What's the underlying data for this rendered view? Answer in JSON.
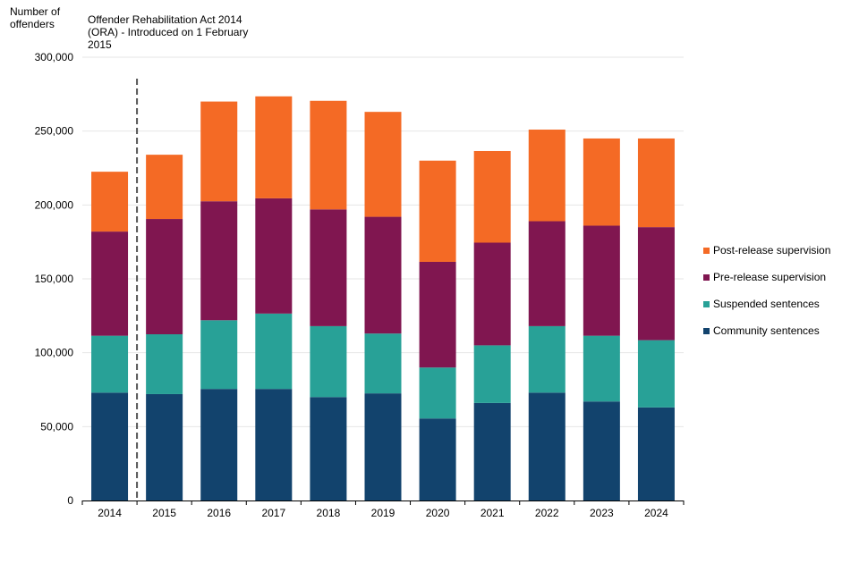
{
  "chart_data": {
    "type": "bar",
    "stacked": true,
    "ylabel": "Number of offenders",
    "xlabel": "",
    "ylim": [
      0,
      300000
    ],
    "yticks": [
      0,
      50000,
      100000,
      150000,
      200000,
      250000,
      300000
    ],
    "ytick_labels": [
      "0",
      "50,000",
      "100,000",
      "150,000",
      "200,000",
      "250,000",
      "300,000"
    ],
    "grid": true,
    "legend_position": "right",
    "categories": [
      "2014",
      "2015",
      "2016",
      "2017",
      "2018",
      "2019",
      "2020",
      "2021",
      "2022",
      "2023",
      "2024"
    ],
    "series": [
      {
        "name": "Community sentences",
        "color": "#12436d",
        "values": [
          73000,
          72000,
          75500,
          75500,
          70000,
          72500,
          55500,
          66000,
          73000,
          67000,
          63000
        ]
      },
      {
        "name": "Suspended sentences",
        "color": "#28a197",
        "values": [
          38500,
          40500,
          46500,
          51000,
          48000,
          40500,
          34500,
          39000,
          45000,
          44500,
          45500
        ]
      },
      {
        "name": "Pre-release supervision",
        "color": "#801650",
        "values": [
          70500,
          78000,
          80500,
          78000,
          79000,
          79000,
          71500,
          69500,
          71000,
          74500,
          76500
        ]
      },
      {
        "name": "Post-release supervision",
        "color": "#f46a25",
        "values": [
          40500,
          43500,
          67500,
          69000,
          73500,
          71000,
          68500,
          62000,
          62000,
          59000,
          60000
        ]
      }
    ],
    "annotation": {
      "text": "Offender Rehabilitation Act 2014 (ORA) - Introduced on 1 February 2015",
      "between": [
        "2014",
        "2015"
      ]
    },
    "legend_order": [
      "Post-release supervision",
      "Pre-release supervision",
      "Suspended sentences",
      "Community sentences"
    ]
  }
}
